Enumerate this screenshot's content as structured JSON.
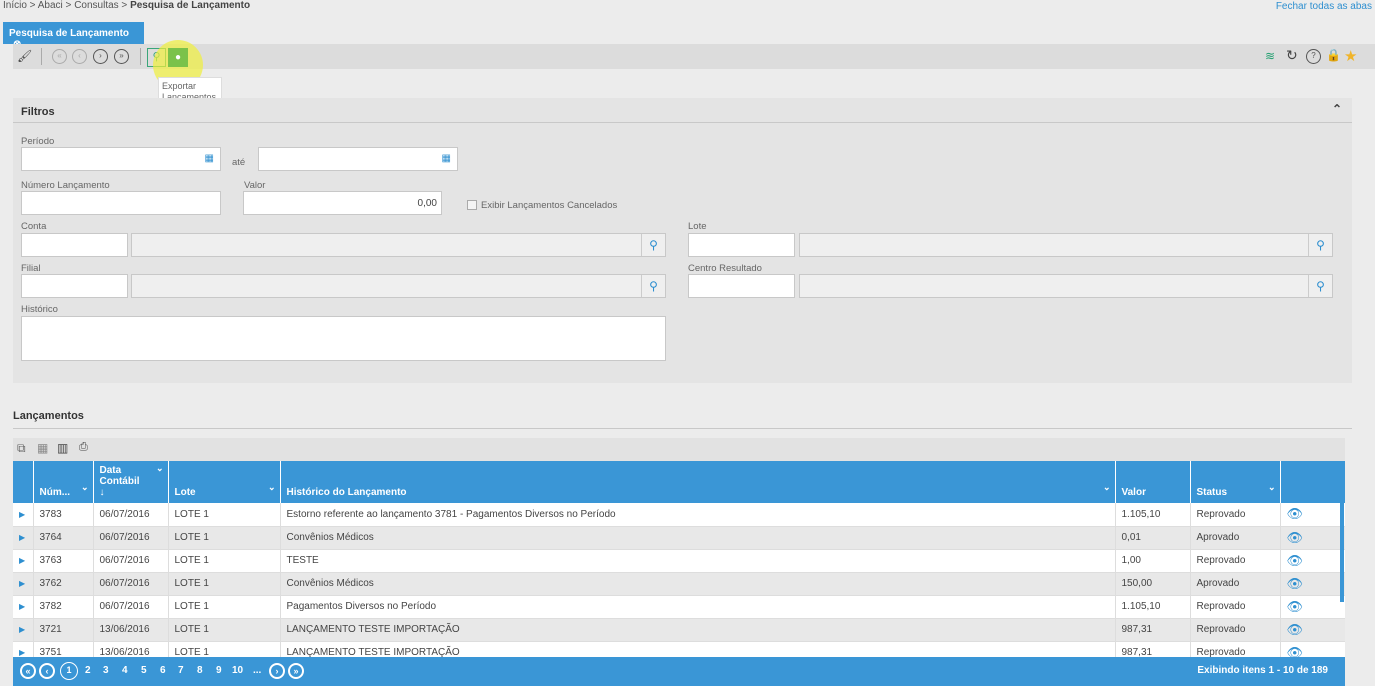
{
  "breadcrumb": {
    "items": [
      "Início",
      "Abaci",
      "Consultas"
    ],
    "current": "Pesquisa de Lançamento"
  },
  "close_all": "Fechar todas as abas",
  "tab": {
    "label": "Pesquisa de Lançamento"
  },
  "tooltip": "Exportar Lançamentos",
  "filters": {
    "title": "Filtros",
    "periodo": "Período",
    "ate": "até",
    "numero": "Número Lançamento",
    "valor": "Valor",
    "valor_value": "0,00",
    "cancelados": "Exibir Lançamentos Cancelados",
    "conta": "Conta",
    "lote": "Lote",
    "filial": "Filial",
    "centro": "Centro Resultado",
    "historico": "Histórico"
  },
  "section_title": "Lançamentos",
  "table": {
    "headers": [
      "Núm...",
      "Data Contábil",
      "Lote",
      "Histórico do Lançamento",
      "Valor",
      "Status"
    ],
    "rows": [
      [
        "3783",
        "06/07/2016",
        "LOTE 1",
        "Estorno referente ao lançamento 3781 - Pagamentos Diversos no Período",
        "1.105,10",
        "Reprovado"
      ],
      [
        "3764",
        "06/07/2016",
        "LOTE 1",
        "Convênios Médicos",
        "0,01",
        "Aprovado"
      ],
      [
        "3763",
        "06/07/2016",
        "LOTE 1",
        "TESTE",
        "1,00",
        "Reprovado"
      ],
      [
        "3762",
        "06/07/2016",
        "LOTE 1",
        "Convênios Médicos",
        "150,00",
        "Aprovado"
      ],
      [
        "3782",
        "06/07/2016",
        "LOTE 1",
        "Pagamentos Diversos no Período",
        "1.105,10",
        "Reprovado"
      ],
      [
        "3721",
        "13/06/2016",
        "LOTE 1",
        "LANÇAMENTO TESTE IMPORTAÇÃO",
        "987,31",
        "Reprovado"
      ],
      [
        "3751",
        "13/06/2016",
        "LOTE 1",
        "LANÇAMENTO TESTE IMPORTAÇÃO",
        "987,31",
        "Reprovado"
      ]
    ]
  },
  "pager": {
    "pages": [
      "1",
      "2",
      "3",
      "4",
      "5",
      "6",
      "7",
      "8",
      "9",
      "10",
      "..."
    ],
    "current": "1",
    "summary": "Exibindo itens 1 - 10 de 189"
  }
}
